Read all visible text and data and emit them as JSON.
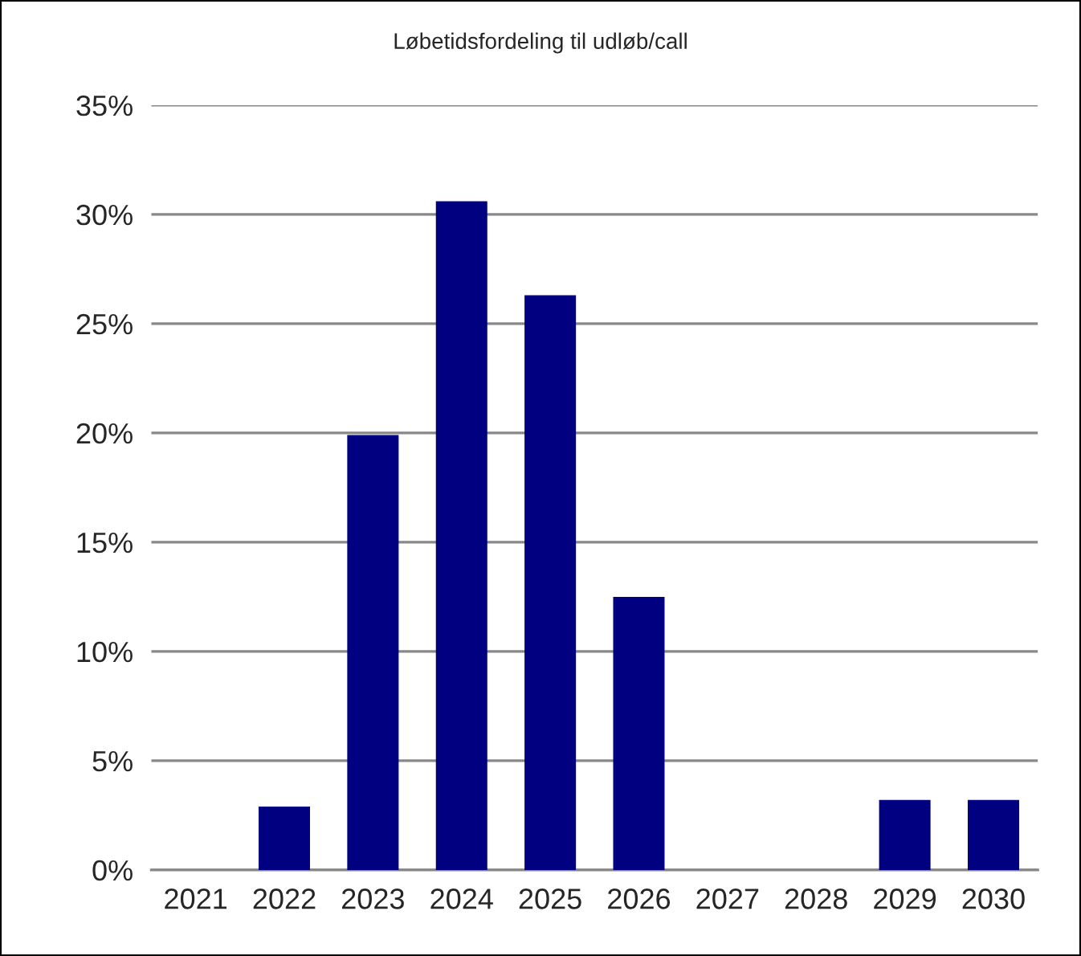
{
  "chart_data": {
    "type": "bar",
    "title": "Løbetidsfordeling til udløb/call",
    "categories": [
      "2021",
      "2022",
      "2023",
      "2024",
      "2025",
      "2026",
      "2027",
      "2028",
      "2029",
      "2030"
    ],
    "values": [
      0,
      2.9,
      19.9,
      30.6,
      26.3,
      12.5,
      0,
      0,
      3.2,
      3.2
    ],
    "color": "#000080",
    "ylim": [
      0,
      35
    ],
    "yticks": [
      {
        "value": 0,
        "label": "0%"
      },
      {
        "value": 5,
        "label": "5%"
      },
      {
        "value": 10,
        "label": "10%"
      },
      {
        "value": 15,
        "label": "15%"
      },
      {
        "value": 20,
        "label": "20%"
      },
      {
        "value": 25,
        "label": "25%"
      },
      {
        "value": 30,
        "label": "30%"
      },
      {
        "value": 35,
        "label": "35%"
      }
    ],
    "grid": "y",
    "legend": false
  }
}
